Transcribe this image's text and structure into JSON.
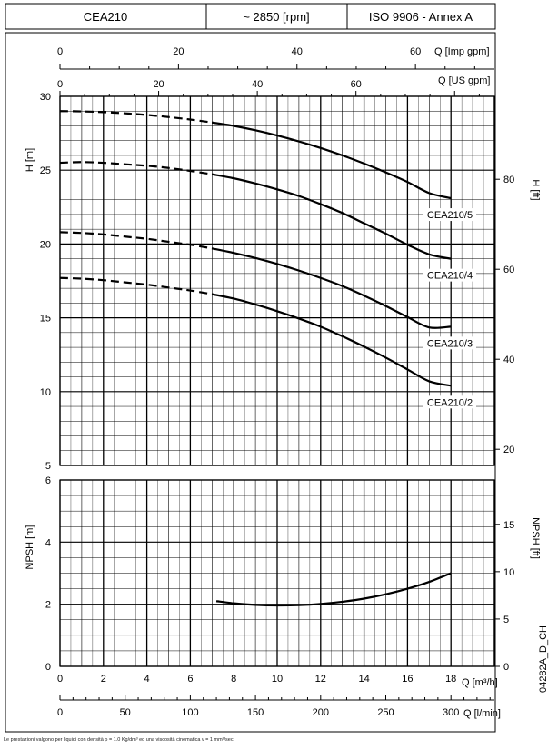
{
  "header": {
    "model": "CEA210",
    "speed": "~ 2850 [rpm]",
    "standard": "ISO 9906 - Annex A"
  },
  "code": "04282A_D_CH",
  "footnote": "Le prestazioni valgono per liquidi con densità ρ = 1.0 Kg/dm³ ed una viscosità cinematica ν = 1 mm²/sec.",
  "chart_data": [
    {
      "type": "line",
      "name": "head",
      "ylabel": "H [m]",
      "ylabel_right": "H [ft]",
      "xlabel": "Q [m³/h]",
      "xlabel_lmin": "Q [l/min]",
      "xlabel_usgpm": "Q [US gpm]",
      "xlabel_impgpm": "Q [Imp gpm]",
      "xlim": [
        0,
        20
      ],
      "ylim": [
        5,
        30
      ],
      "x_ticks": [
        "0",
        "2",
        "4",
        "6",
        "8",
        "10",
        "12",
        "14",
        "16",
        "18"
      ],
      "lmin_ticks": [
        "0",
        "50",
        "100",
        "150",
        "200",
        "250",
        "300"
      ],
      "usgpm_ticks": [
        "0",
        "20",
        "40",
        "60"
      ],
      "impgpm_ticks": [
        "0",
        "20",
        "40",
        "60"
      ],
      "y_ticks": [
        "5",
        "10",
        "15",
        "20",
        "25",
        "30"
      ],
      "y_ticks_ft": [
        "20",
        "40",
        "60",
        "80"
      ],
      "grid": true,
      "series": [
        {
          "name": "CEA210/5",
          "dashed_until": 7,
          "x": [
            0,
            1,
            2,
            3,
            4,
            5,
            6,
            7,
            8,
            9,
            10,
            11,
            12,
            13,
            14,
            15,
            16,
            17,
            18
          ],
          "y": [
            29.0,
            28.98,
            28.93,
            28.85,
            28.74,
            28.6,
            28.43,
            28.23,
            28.0,
            27.7,
            27.35,
            26.95,
            26.5,
            26.0,
            25.45,
            24.85,
            24.2,
            23.45,
            23.1
          ]
        },
        {
          "name": "CEA210/4",
          "dashed_until": 7,
          "x": [
            0,
            1,
            2,
            3,
            4,
            5,
            6,
            7,
            8,
            9,
            10,
            11,
            12,
            13,
            14,
            15,
            16,
            17,
            18
          ],
          "y": [
            25.5,
            25.55,
            25.5,
            25.4,
            25.3,
            25.15,
            24.95,
            24.72,
            24.45,
            24.1,
            23.7,
            23.25,
            22.7,
            22.1,
            21.4,
            20.7,
            19.95,
            19.3,
            19.0
          ]
        },
        {
          "name": "CEA210/3",
          "dashed_until": 7,
          "x": [
            0,
            1,
            2,
            3,
            4,
            5,
            6,
            7,
            8,
            9,
            10,
            11,
            12,
            13,
            14,
            15,
            16,
            17,
            18
          ],
          "y": [
            20.8,
            20.75,
            20.65,
            20.5,
            20.35,
            20.15,
            19.95,
            19.7,
            19.4,
            19.05,
            18.65,
            18.2,
            17.7,
            17.15,
            16.5,
            15.8,
            15.05,
            14.35,
            14.4
          ]
        },
        {
          "name": "CEA210/2",
          "dashed_until": 7,
          "x": [
            0,
            1,
            2,
            3,
            4,
            5,
            6,
            7,
            8,
            9,
            10,
            11,
            12,
            13,
            14,
            15,
            16,
            17,
            18
          ],
          "y": [
            17.7,
            17.65,
            17.55,
            17.4,
            17.25,
            17.05,
            16.85,
            16.6,
            16.3,
            15.9,
            15.45,
            14.95,
            14.4,
            13.75,
            13.05,
            12.3,
            11.5,
            10.7,
            10.4
          ]
        }
      ]
    },
    {
      "type": "line",
      "name": "npsh",
      "ylabel": "NPSH [m]",
      "ylabel_right": "NPSH [ft]",
      "xlim": [
        0,
        20
      ],
      "ylim": [
        0,
        6
      ],
      "y_ticks": [
        "0",
        "2",
        "4",
        "6"
      ],
      "y_ticks_ft": [
        "0",
        "5",
        "10",
        "15"
      ],
      "grid": true,
      "series": [
        {
          "name": "NPSH",
          "x": [
            7.2,
            8,
            9,
            10,
            11,
            12,
            13,
            14,
            15,
            16,
            17,
            18
          ],
          "y": [
            2.1,
            2.03,
            1.98,
            1.96,
            1.97,
            2.01,
            2.08,
            2.18,
            2.32,
            2.5,
            2.72,
            3.0
          ]
        }
      ]
    }
  ]
}
